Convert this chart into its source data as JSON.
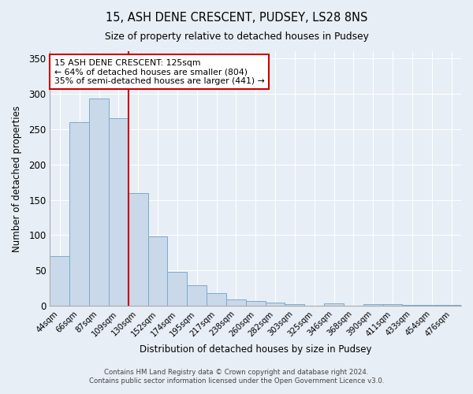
{
  "title": "15, ASH DENE CRESCENT, PUDSEY, LS28 8NS",
  "subtitle": "Size of property relative to detached houses in Pudsey",
  "xlabel": "Distribution of detached houses by size in Pudsey",
  "ylabel": "Number of detached properties",
  "bar_color": "#c9d9ea",
  "bar_edge_color": "#7aaacb",
  "background_color": "#e8eef5",
  "plot_bg_color": "#e8eef5",
  "categories": [
    "44sqm",
    "66sqm",
    "87sqm",
    "109sqm",
    "130sqm",
    "152sqm",
    "174sqm",
    "195sqm",
    "217sqm",
    "238sqm",
    "260sqm",
    "282sqm",
    "303sqm",
    "325sqm",
    "346sqm",
    "368sqm",
    "390sqm",
    "411sqm",
    "433sqm",
    "454sqm",
    "476sqm"
  ],
  "values": [
    70,
    260,
    293,
    265,
    160,
    98,
    48,
    29,
    18,
    9,
    7,
    5,
    2,
    0,
    3,
    0,
    2,
    2,
    1,
    1,
    1
  ],
  "vline_index": 3.5,
  "vline_color": "#cc0000",
  "annotation_line1": "15 ASH DENE CRESCENT: 125sqm",
  "annotation_line2": "← 64% of detached houses are smaller (804)",
  "annotation_line3": "35% of semi-detached houses are larger (441) →",
  "annotation_box_edge_color": "#cc0000",
  "ylim": [
    0,
    360
  ],
  "yticks": [
    0,
    50,
    100,
    150,
    200,
    250,
    300,
    350
  ],
  "footer_line1": "Contains HM Land Registry data © Crown copyright and database right 2024.",
  "footer_line2": "Contains public sector information licensed under the Open Government Licence v3.0."
}
